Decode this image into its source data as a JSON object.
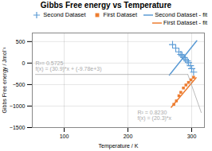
{
  "chart_data": {
    "type": "scatter",
    "title": "Gibbs Free energy vs Temperature",
    "xlabel": "Temperature / K",
    "ylabel": "Gibbs Free energy / Jmol⁻¹",
    "xlim": [
      50,
      320
    ],
    "ylim": [
      -1500,
      700
    ],
    "xticks": [
      100,
      200,
      300
    ],
    "yticks": [
      500,
      0,
      -500,
      -1000,
      -1500
    ],
    "grid": true,
    "legend": "upper right",
    "series": [
      {
        "name": "Second Dataset",
        "type": "scatter",
        "marker": "plus",
        "color": "#5B9BD5",
        "x": [
          270,
          275,
          280,
          283,
          285,
          288,
          290,
          293,
          295,
          298,
          300,
          303
        ],
        "values": [
          430,
          350,
          260,
          200,
          170,
          130,
          90,
          50,
          10,
          -60,
          -130,
          -210
        ]
      },
      {
        "name": "First Dataset",
        "type": "scatter",
        "marker": "square",
        "color": "#ED7D31",
        "x": [
          272,
          276,
          280,
          283,
          287,
          291,
          295,
          299,
          303
        ],
        "values": [
          -960,
          -880,
          -760,
          -680,
          -580,
          -510,
          -450,
          -390,
          -330
        ]
      },
      {
        "name": "Second Dataset - fit",
        "type": "line",
        "color": "#5B9BD5",
        "x": [
          265,
          308
        ],
        "values": [
          -280,
          520
        ]
      },
      {
        "name": "First Dataset - fit",
        "type": "line",
        "color": "#ED7D31",
        "x": [
          268,
          307
        ],
        "values": [
          -1030,
          -340
        ]
      },
      {
        "type": "line",
        "color": "#AAAAAA",
        "x": [
          55,
          294
        ],
        "values": [
          -265,
          -265
        ]
      },
      {
        "type": "line",
        "color": "#AAAAAA",
        "x": [
          294,
          315
        ],
        "values": [
          -265,
          -1150
        ]
      }
    ],
    "annotations": [
      {
        "text": "R²= 0.5725\nf(x) = (30.9)*x + (-9.78e+3)",
        "x": 55,
        "y": -175,
        "color": "#AAAAAA"
      },
      {
        "text": "R² = 0.8230\nf(x) = (20.3)*x",
        "x": 215,
        "y": -1100,
        "color": "#AAAAAA"
      }
    ]
  }
}
